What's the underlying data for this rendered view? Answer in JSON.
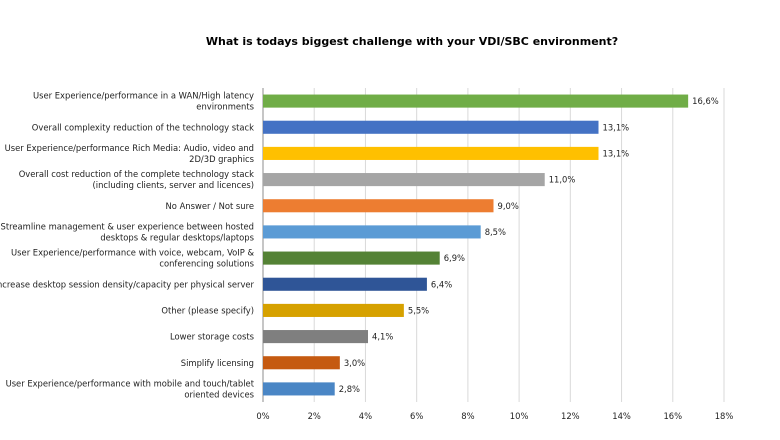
{
  "chart_data": {
    "type": "bar",
    "orientation": "horizontal",
    "title": "What is todays biggest challenge with your VDI/SBC environment?",
    "xlabel": "",
    "ylabel": "",
    "xlim": [
      0,
      18
    ],
    "x_ticks": [
      "0%",
      "2%",
      "4%",
      "6%",
      "8%",
      "10%",
      "12%",
      "14%",
      "16%",
      "18%"
    ],
    "grid": "vertical",
    "categories": [
      [
        "User Experience/performance in a WAN/High latency",
        "environments"
      ],
      [
        "Overall complexity reduction of the technology stack"
      ],
      [
        "User Experience/performance Rich Media: Audio, video and",
        "2D/3D graphics"
      ],
      [
        "Overall cost reduction of the complete technology stack",
        "(including clients, server and licences)"
      ],
      [
        "No Answer / Not sure"
      ],
      [
        "Streamline management & user experience between hosted",
        "desktops & regular desktops/laptops"
      ],
      [
        "User Experience/performance with voice, webcam, VoIP &",
        "conferencing solutions"
      ],
      [
        "Increase desktop session density/capacity per physical server"
      ],
      [
        "Other (please specify)"
      ],
      [
        "Lower storage costs"
      ],
      [
        "Simplify licensing"
      ],
      [
        "User Experience/performance with mobile and touch/tablet",
        "oriented devices"
      ]
    ],
    "values": [
      16.6,
      13.1,
      13.1,
      11.0,
      9.0,
      8.5,
      6.9,
      6.4,
      5.5,
      4.1,
      3.0,
      2.8
    ],
    "value_labels": [
      "16,6%",
      "13,1%",
      "13,1%",
      "11,0%",
      "9,0%",
      "8,5%",
      "6,9%",
      "6,4%",
      "5,5%",
      "4,1%",
      "3,0%",
      "2,8%"
    ],
    "colors": [
      "#70ad47",
      "#4472c4",
      "#ffc000",
      "#a5a5a5",
      "#ed7d31",
      "#5b9bd5",
      "#548235",
      "#2f5597",
      "#d6a100",
      "#7f7f7f",
      "#c55a11",
      "#4a86c5"
    ]
  }
}
